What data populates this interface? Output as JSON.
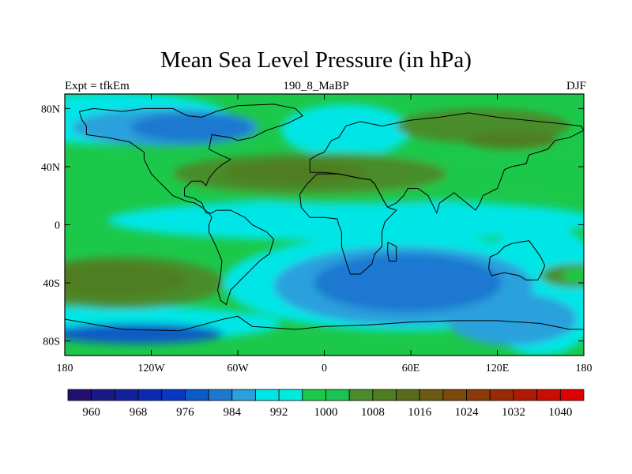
{
  "chart_data": {
    "type": "heatmap",
    "title": "Mean Sea Level Pressure (in hPa)",
    "left_label": "Expt = tfkEm",
    "center_label": "190_8_MaBP",
    "right_label": "DJF",
    "x_ticks": [
      "180",
      "120W",
      "60W",
      "0",
      "60E",
      "120E",
      "180"
    ],
    "x_tick_values": [
      -180,
      -120,
      -60,
      0,
      60,
      120,
      180
    ],
    "y_ticks": [
      "80N",
      "40N",
      "0",
      "40S",
      "80S"
    ],
    "y_tick_values": [
      80,
      40,
      0,
      -40,
      -80
    ],
    "xlim": [
      -180,
      180
    ],
    "ylim": [
      -90,
      90
    ],
    "colorbar": {
      "labels": [
        "960",
        "968",
        "976",
        "984",
        "992",
        "1000",
        "1008",
        "1016",
        "1024",
        "1032",
        "1040"
      ],
      "label_values": [
        960,
        968,
        976,
        984,
        992,
        1000,
        1008,
        1016,
        1024,
        1032,
        1040
      ],
      "colors": [
        "#22106f",
        "#1a1a87",
        "#11219b",
        "#0c2ab0",
        "#0838c2",
        "#0b5bc6",
        "#1e78d0",
        "#2aa0dc",
        "#00e6e6",
        "#00ebdc",
        "#1cc84a",
        "#1ac454",
        "#4a8c2a",
        "#4f7e22",
        "#5a6a1c",
        "#6a5a12",
        "#7a4a0c",
        "#8a3a08",
        "#9a2a06",
        "#b01a05",
        "#c80f05",
        "#e00000"
      ]
    },
    "fields": [
      {
        "fill": "#00e6e6",
        "cx": -145,
        "cy": 73,
        "rx": 80,
        "ry": 18
      },
      {
        "fill": "#00e6e6",
        "cx": 15,
        "cy": 65,
        "rx": 45,
        "ry": 18
      },
      {
        "fill": "#00e6e6",
        "cx": 20,
        "cy": 3,
        "rx": 170,
        "ry": 14
      },
      {
        "fill": "#00e6e6",
        "cx": 55,
        "cy": -40,
        "rx": 125,
        "ry": 33
      },
      {
        "fill": "#00e6e6",
        "cx": -140,
        "cy": -68,
        "rx": 110,
        "ry": 12
      },
      {
        "fill": "#00e6e6",
        "cx": 150,
        "cy": -45,
        "rx": 45,
        "ry": 45
      },
      {
        "fill": "#2aa0dc",
        "cx": -110,
        "cy": 67,
        "rx": 65,
        "ry": 13
      },
      {
        "fill": "#2aa0dc",
        "cx": 55,
        "cy": -42,
        "rx": 90,
        "ry": 27
      },
      {
        "fill": "#2aa0dc",
        "cx": 130,
        "cy": -65,
        "rx": 45,
        "ry": 18
      },
      {
        "fill": "#1e78d0",
        "cx": -92,
        "cy": 67,
        "rx": 42,
        "ry": 10
      },
      {
        "fill": "#1e78d0",
        "cx": 58,
        "cy": -40,
        "rx": 65,
        "ry": 20
      },
      {
        "fill": "#0b5bc6",
        "cx": -130,
        "cy": -75,
        "rx": 60,
        "ry": 7
      },
      {
        "fill": "#1cc84a",
        "cx": 20,
        "cy": 32,
        "rx": 130,
        "ry": 18
      },
      {
        "fill": "#4a8c2a",
        "cx": -10,
        "cy": 35,
        "rx": 95,
        "ry": 14
      },
      {
        "fill": "#4f7e22",
        "cx": -20,
        "cy": 36,
        "rx": 50,
        "ry": 8
      },
      {
        "fill": "#4a8c2a",
        "cx": 110,
        "cy": 68,
        "rx": 60,
        "ry": 12
      },
      {
        "fill": "#4f7e22",
        "cx": 130,
        "cy": 58,
        "rx": 32,
        "ry": 6
      },
      {
        "fill": "#1cc84a",
        "cx": 160,
        "cy": 35,
        "rx": 35,
        "ry": 18
      },
      {
        "fill": "#4a8c2a",
        "cx": -140,
        "cy": -40,
        "rx": 70,
        "ry": 18
      },
      {
        "fill": "#4f7e22",
        "cx": -150,
        "cy": -38,
        "rx": 55,
        "ry": 12
      },
      {
        "fill": "#4a8c2a",
        "cx": 175,
        "cy": -35,
        "rx": 25,
        "ry": 8
      },
      {
        "fill": "#1cc84a",
        "cx": 175,
        "cy": -35,
        "rx": 10,
        "ry": 5
      }
    ],
    "coastlines": [
      [
        [
          -170,
          78
        ],
        [
          -160,
          80
        ],
        [
          -140,
          78
        ],
        [
          -125,
          80
        ],
        [
          -105,
          80
        ],
        [
          -95,
          75
        ],
        [
          -85,
          74
        ],
        [
          -75,
          78
        ],
        [
          -60,
          82
        ],
        [
          -35,
          83
        ],
        [
          -20,
          80
        ],
        [
          -15,
          75
        ],
        [
          -25,
          70
        ],
        [
          -40,
          65
        ],
        [
          -50,
          60
        ],
        [
          -60,
          58
        ],
        [
          -65,
          60
        ],
        [
          -78,
          62
        ],
        [
          -80,
          52
        ],
        [
          -72,
          48
        ],
        [
          -65,
          45
        ],
        [
          -70,
          42
        ],
        [
          -75,
          38
        ],
        [
          -80,
          32
        ],
        [
          -82,
          27
        ],
        [
          -85,
          30
        ],
        [
          -92,
          30
        ],
        [
          -97,
          25
        ],
        [
          -97,
          20
        ],
        [
          -90,
          18
        ],
        [
          -85,
          15
        ],
        [
          -82,
          8
        ],
        [
          -78,
          8
        ],
        [
          -75,
          10
        ],
        [
          -65,
          10
        ],
        [
          -55,
          5
        ],
        [
          -50,
          0
        ],
        [
          -40,
          -5
        ],
        [
          -35,
          -10
        ],
        [
          -38,
          -20
        ],
        [
          -45,
          -25
        ],
        [
          -50,
          -30
        ],
        [
          -58,
          -38
        ],
        [
          -65,
          -45
        ],
        [
          -68,
          -55
        ],
        [
          -72,
          -52
        ],
        [
          -74,
          -45
        ],
        [
          -72,
          -35
        ],
        [
          -71,
          -25
        ],
        [
          -75,
          -15
        ],
        [
          -80,
          -5
        ],
        [
          -80,
          0
        ],
        [
          -78,
          5
        ],
        [
          -80,
          8
        ],
        [
          -85,
          12
        ],
        [
          -90,
          15
        ],
        [
          -95,
          16
        ],
        [
          -105,
          20
        ],
        [
          -110,
          25
        ],
        [
          -115,
          30
        ],
        [
          -120,
          35
        ],
        [
          -125,
          45
        ],
        [
          -125,
          50
        ],
        [
          -135,
          57
        ],
        [
          -150,
          60
        ],
        [
          -165,
          62
        ],
        [
          -165,
          68
        ],
        [
          -168,
          72
        ],
        [
          -170,
          78
        ]
      ],
      [
        [
          -10,
          36
        ],
        [
          -10,
          45
        ],
        [
          -5,
          48
        ],
        [
          0,
          50
        ],
        [
          5,
          58
        ],
        [
          10,
          60
        ],
        [
          15,
          68
        ],
        [
          25,
          71
        ],
        [
          40,
          68
        ],
        [
          60,
          72
        ],
        [
          80,
          74
        ],
        [
          100,
          77
        ],
        [
          120,
          74
        ],
        [
          140,
          72
        ],
        [
          160,
          70
        ],
        [
          178,
          68
        ],
        [
          180,
          65
        ],
        [
          170,
          60
        ],
        [
          160,
          58
        ],
        [
          155,
          52
        ],
        [
          142,
          48
        ],
        [
          140,
          42
        ],
        [
          130,
          40
        ],
        [
          125,
          38
        ],
        [
          122,
          30
        ],
        [
          120,
          25
        ],
        [
          110,
          20
        ],
        [
          108,
          15
        ],
        [
          105,
          10
        ],
        [
          100,
          14
        ],
        [
          95,
          18
        ],
        [
          90,
          22
        ],
        [
          80,
          15
        ],
        [
          78,
          8
        ],
        [
          72,
          20
        ],
        [
          65,
          25
        ],
        [
          58,
          25
        ],
        [
          55,
          20
        ],
        [
          50,
          15
        ],
        [
          44,
          12
        ],
        [
          42,
          15
        ],
        [
          35,
          28
        ],
        [
          32,
          31
        ],
        [
          25,
          32
        ],
        [
          10,
          35
        ],
        [
          0,
          36
        ],
        [
          -10,
          36
        ]
      ],
      [
        [
          -17,
          21
        ],
        [
          -16,
          12
        ],
        [
          -10,
          5
        ],
        [
          0,
          5
        ],
        [
          9,
          4
        ],
        [
          10,
          0
        ],
        [
          12,
          -5
        ],
        [
          12,
          -15
        ],
        [
          15,
          -25
        ],
        [
          18,
          -34
        ],
        [
          25,
          -34
        ],
        [
          33,
          -27
        ],
        [
          35,
          -20
        ],
        [
          40,
          -15
        ],
        [
          40,
          -5
        ],
        [
          42,
          2
        ],
        [
          50,
          10
        ],
        [
          44,
          12
        ],
        [
          42,
          15
        ],
        [
          35,
          28
        ],
        [
          32,
          31
        ],
        [
          25,
          32
        ],
        [
          10,
          35
        ],
        [
          -5,
          35
        ],
        [
          -12,
          28
        ],
        [
          -17,
          21
        ]
      ],
      [
        [
          115,
          -22
        ],
        [
          114,
          -30
        ],
        [
          116,
          -35
        ],
        [
          125,
          -33
        ],
        [
          135,
          -35
        ],
        [
          140,
          -38
        ],
        [
          148,
          -38
        ],
        [
          150,
          -35
        ],
        [
          153,
          -28
        ],
        [
          150,
          -22
        ],
        [
          145,
          -15
        ],
        [
          142,
          -11
        ],
        [
          135,
          -12
        ],
        [
          130,
          -13
        ],
        [
          125,
          -15
        ],
        [
          120,
          -20
        ],
        [
          115,
          -22
        ]
      ],
      [
        [
          44,
          -12
        ],
        [
          50,
          -15
        ],
        [
          50,
          -25
        ],
        [
          45,
          -25
        ],
        [
          44,
          -20
        ],
        [
          44,
          -12
        ]
      ],
      [
        [
          -180,
          -65
        ],
        [
          -140,
          -72
        ],
        [
          -100,
          -73
        ],
        [
          -70,
          -65
        ],
        [
          -60,
          -63
        ],
        [
          -50,
          -70
        ],
        [
          -20,
          -72
        ],
        [
          0,
          -70
        ],
        [
          30,
          -69
        ],
        [
          60,
          -67
        ],
        [
          90,
          -66
        ],
        [
          120,
          -66
        ],
        [
          150,
          -68
        ],
        [
          170,
          -72
        ],
        [
          180,
          -72
        ]
      ]
    ]
  }
}
